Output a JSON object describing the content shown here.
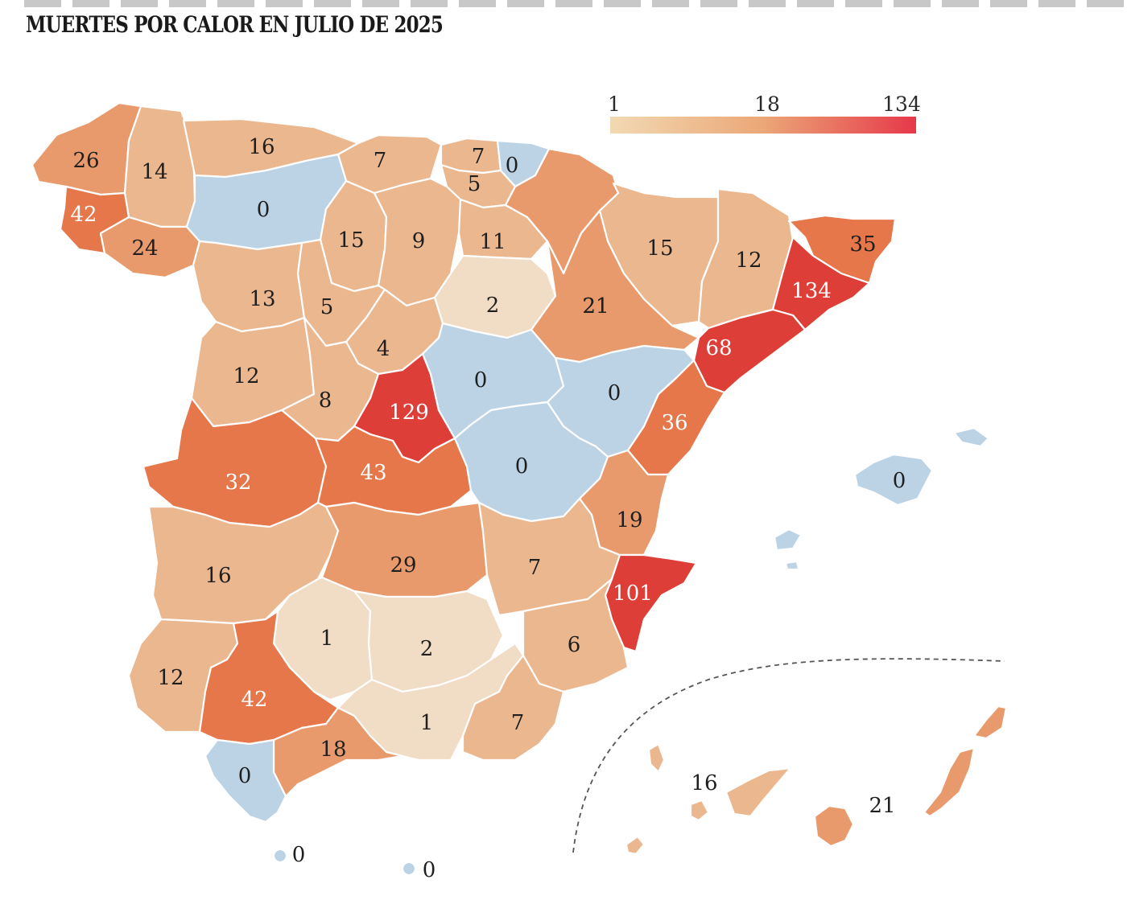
{
  "title": "MUERTES POR CALOR EN JULIO DE 2025",
  "colors": {
    "zero": "#bcd3e6",
    "scale_low": "#f2d9b3",
    "scale_mid": "#eba777",
    "scale_high": "#e6384a",
    "land_pale": "#f1dcc5",
    "land_light": "#ebb78f",
    "land_mid": "#e89a6c",
    "land_strong": "#e6774a",
    "land_red": "#dd3e37"
  },
  "legend": {
    "min": "1",
    "mid": "18",
    "max": "134"
  },
  "provinces": [
    {
      "name": "A Coruña",
      "value": "26"
    },
    {
      "name": "Lugo",
      "value": "14"
    },
    {
      "name": "Pontevedra",
      "value": "42"
    },
    {
      "name": "Ourense",
      "value": "24"
    },
    {
      "name": "Asturias",
      "value": "16"
    },
    {
      "name": "Cantabria",
      "value": "7"
    },
    {
      "name": "Bizkaia",
      "value": "7"
    },
    {
      "name": "Gipuzkoa",
      "value": "0"
    },
    {
      "name": "Álava",
      "value": "5"
    },
    {
      "name": "León",
      "value": "0"
    },
    {
      "name": "Palencia",
      "value": "15"
    },
    {
      "name": "Burgos",
      "value": "9"
    },
    {
      "name": "La Rioja",
      "value": "11"
    },
    {
      "name": "Navarra",
      "value": "21"
    },
    {
      "name": "Huesca",
      "value": "15"
    },
    {
      "name": "Lleida",
      "value": "12"
    },
    {
      "name": "Girona",
      "value": "35"
    },
    {
      "name": "Barcelona",
      "value": "134"
    },
    {
      "name": "Tarragona",
      "value": "68"
    },
    {
      "name": "Zamora",
      "value": "13"
    },
    {
      "name": "Valladolid",
      "value": "5"
    },
    {
      "name": "Soria",
      "value": "2"
    },
    {
      "name": "Zaragoza",
      "value": "21"
    },
    {
      "name": "Segovia",
      "value": "4"
    },
    {
      "name": "Salamanca",
      "value": "12"
    },
    {
      "name": "Ávila",
      "value": "8"
    },
    {
      "name": "Madrid",
      "value": "129"
    },
    {
      "name": "Guadalajara",
      "value": "0"
    },
    {
      "name": "Teruel",
      "value": "0"
    },
    {
      "name": "Castellón",
      "value": "36"
    },
    {
      "name": "Cáceres",
      "value": "32"
    },
    {
      "name": "Toledo",
      "value": "43"
    },
    {
      "name": "Cuenca",
      "value": "0"
    },
    {
      "name": "Valencia",
      "value": "19"
    },
    {
      "name": "Badajoz",
      "value": "16"
    },
    {
      "name": "Ciudad Real",
      "value": "29"
    },
    {
      "name": "Albacete",
      "value": "7"
    },
    {
      "name": "Alicante",
      "value": "101"
    },
    {
      "name": "Murcia",
      "value": "6"
    },
    {
      "name": "Córdoba",
      "value": "1"
    },
    {
      "name": "Jaén",
      "value": "2"
    },
    {
      "name": "Huelva",
      "value": "12"
    },
    {
      "name": "Sevilla",
      "value": "42"
    },
    {
      "name": "Granada",
      "value": "1"
    },
    {
      "name": "Almería",
      "value": "7"
    },
    {
      "name": "Málaga",
      "value": "18"
    },
    {
      "name": "Cádiz",
      "value": "0"
    },
    {
      "name": "Baleares",
      "value": "0"
    },
    {
      "name": "Santa Cruz de Tenerife",
      "value": "16"
    },
    {
      "name": "Las Palmas",
      "value": "21"
    },
    {
      "name": "Ceuta",
      "value": "0"
    },
    {
      "name": "Melilla",
      "value": "0"
    }
  ]
}
